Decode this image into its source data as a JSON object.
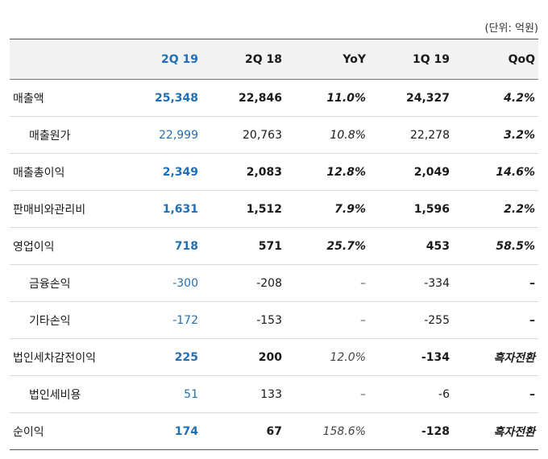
{
  "unit_label": "(단위: 억원)",
  "columns": [
    "",
    "2Q 19",
    "2Q 18",
    "YoY",
    "1Q 19",
    "QoQ"
  ],
  "rows": [
    {
      "label": "매출액",
      "sub": false,
      "cells": [
        "25,348",
        "22,846",
        "11.0%",
        "24,327",
        "4.2%"
      ]
    },
    {
      "label": "매출원가",
      "sub": true,
      "cells": [
        "22,999",
        "20,763",
        "10.8%",
        "22,278",
        "3.2%"
      ]
    },
    {
      "label": "매출총이익",
      "sub": false,
      "cells": [
        "2,349",
        "2,083",
        "12.8%",
        "2,049",
        "14.6%"
      ]
    },
    {
      "label": "판매비와관리비",
      "sub": false,
      "cells": [
        "1,631",
        "1,512",
        "7.9%",
        "1,596",
        "2.2%"
      ]
    },
    {
      "label": "영업이익",
      "sub": false,
      "cells": [
        "718",
        "571",
        "25.7%",
        "453",
        "58.5%"
      ]
    },
    {
      "label": "금융손익",
      "sub": true,
      "cells": [
        "-300",
        "-208",
        "–",
        "-334",
        "–"
      ]
    },
    {
      "label": "기타손익",
      "sub": true,
      "cells": [
        "-172",
        "-153",
        "–",
        "-255",
        "–"
      ]
    },
    {
      "label": "법인세차감전이익",
      "sub": false,
      "cells": [
        "225",
        "200",
        "12.0%",
        "-134",
        "흑자전환"
      ]
    },
    {
      "label": "법인세비용",
      "sub": true,
      "cells": [
        "51",
        "133",
        "–",
        "-6",
        "–"
      ]
    },
    {
      "label": "순이익",
      "sub": false,
      "cells": [
        "174",
        "67",
        "158.6%",
        "-128",
        "흑자전환"
      ]
    }
  ],
  "colors": {
    "highlight": "#1f6fb5",
    "header_bg": "#f2f2f2"
  }
}
